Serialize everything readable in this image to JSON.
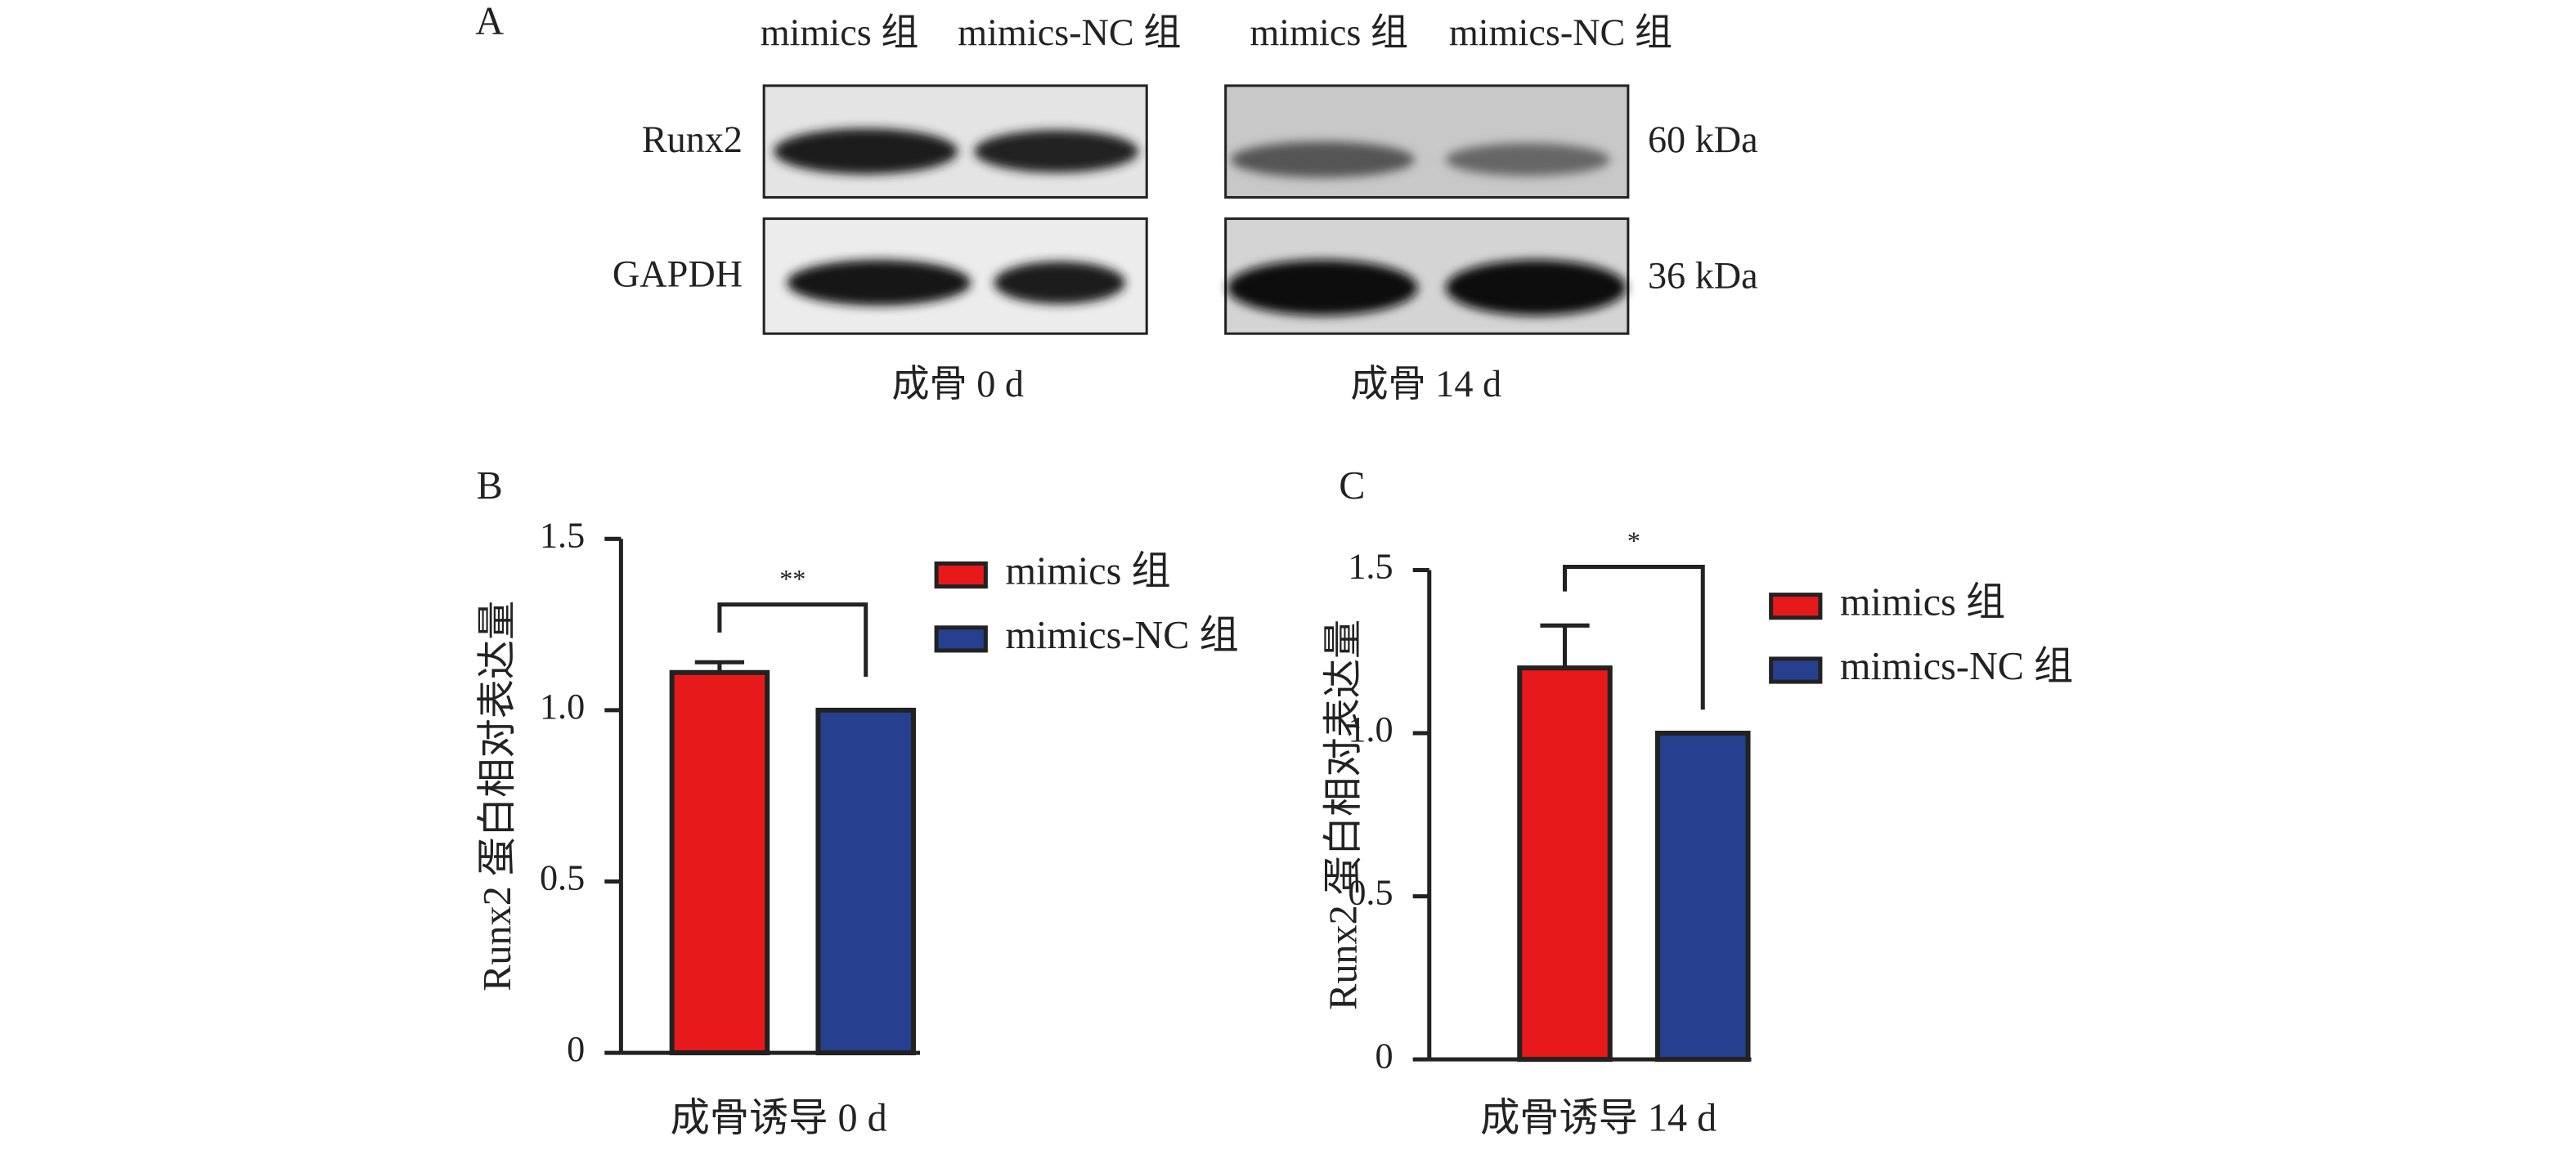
{
  "blot": {
    "panel_label": "A",
    "column_headers": [
      "mimics 组",
      "mimics-NC 组",
      "mimics 组",
      "mimics-NC 组"
    ],
    "row_labels": [
      "Runx2",
      "GAPDH"
    ],
    "sizes": [
      "60 kDa",
      "36 kDa"
    ],
    "time_labels": [
      "成骨 0 d",
      "成骨 14 d"
    ]
  },
  "chart_data": [
    {
      "type": "bar",
      "panel_label": "B",
      "ylabel": "Runx2 蛋白相对表达量",
      "xlabel": "成骨诱导 0 d",
      "annotation": "**",
      "ylim": [
        0,
        1.5
      ],
      "yticks": [
        0,
        0.5,
        {
          "value": 1,
          "label": "1.0"
        },
        1.5
      ],
      "series": [
        {
          "name": "mimics 组",
          "color": "#e8191a",
          "values": [
            1.11
          ],
          "errors": [
            0.03
          ]
        },
        {
          "name": "mimics-NC 组",
          "color": "#263f8f",
          "values": [
            1.0
          ]
        }
      ]
    },
    {
      "type": "bar",
      "panel_label": "C",
      "ylabel": "Runx2 蛋白相对表达量",
      "xlabel": "成骨诱导 14 d",
      "annotation": "*",
      "ylim": [
        0,
        1.5
      ],
      "yticks": [
        0,
        0.5,
        {
          "value": 1,
          "label": "1.0"
        },
        1.5
      ],
      "series": [
        {
          "name": "mimics 组",
          "color": "#e8191a",
          "values": [
            1.2
          ],
          "errors": [
            0.13
          ]
        },
        {
          "name": "mimics-NC 组",
          "color": "#263f8f",
          "values": [
            1.0
          ]
        }
      ]
    }
  ]
}
